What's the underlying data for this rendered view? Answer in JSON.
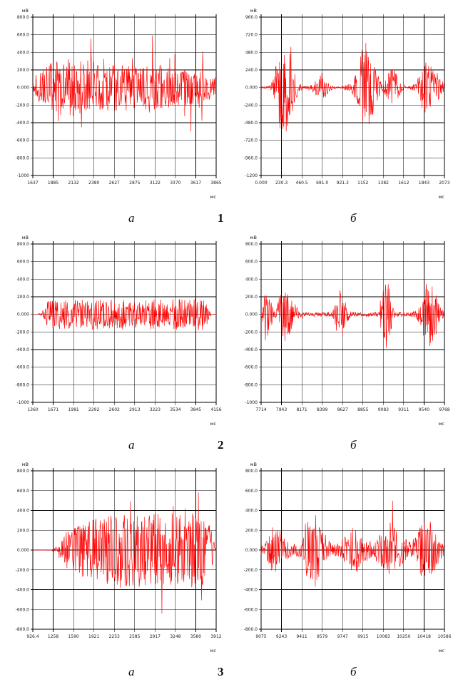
{
  "page": {
    "background": "#ffffff"
  },
  "colors": {
    "signal": "#ff0000",
    "grid": "#000000",
    "text": "#1a1a1a"
  },
  "rows": [
    {
      "number": "1",
      "left_letter": "а",
      "right_letter": "б"
    },
    {
      "number": "2",
      "left_letter": "а",
      "right_letter": "б"
    },
    {
      "number": "3",
      "left_letter": "а",
      "right_letter": "б"
    }
  ],
  "chart_data": [
    {
      "id": "1a",
      "row": 1,
      "panel": "а",
      "type": "line",
      "ylabel": "мВ",
      "xlabel": "мс",
      "y_ticks": [
        "800.0",
        "600.0",
        "400.0",
        "200.0",
        "0.000",
        "-200.0",
        "-400.0",
        "-600.0",
        "-800.0",
        "-1000"
      ],
      "x_ticks": [
        "1637",
        "1885",
        "2132",
        "2380",
        "2627",
        "2875",
        "3122",
        "3370",
        "3617",
        "3865"
      ],
      "description": "continuous dense noise signal centered at 0 mV with spikes up to about ±800 mV",
      "envelope_mv": [
        60,
        150,
        220,
        260,
        280,
        300,
        320,
        340,
        330,
        340,
        330,
        320,
        310,
        300,
        290,
        280,
        280,
        270,
        270,
        260,
        260,
        260,
        250,
        250,
        250,
        260,
        270,
        260,
        250,
        240,
        230,
        230,
        220,
        210,
        200,
        190,
        180,
        170,
        150,
        120
      ],
      "spike_gain": 2.6,
      "spike_prob": 0.06,
      "seed": 101
    },
    {
      "id": "1b",
      "row": 1,
      "panel": "б",
      "type": "line",
      "ylabel": "мВ",
      "xlabel": "мс",
      "y_ticks": [
        "960.0",
        "720.0",
        "480.0",
        "240.0",
        "0.000",
        "-240.0",
        "-480.0",
        "-720.0",
        "-960.0",
        "-1200"
      ],
      "x_ticks": [
        "0.000",
        "230.3",
        "460.5",
        "691.0",
        "921.3",
        "1152",
        "1382",
        "1612",
        "1843",
        "2073"
      ],
      "description": "burst-type signal: large bursts near 250, 1150 and 1900 ms, smaller bursts between, flat baseline elsewhere",
      "envelope_mv": [
        10,
        15,
        40,
        250,
        600,
        650,
        500,
        250,
        60,
        15,
        30,
        80,
        130,
        220,
        110,
        35,
        10,
        10,
        45,
        60,
        160,
        500,
        650,
        550,
        350,
        150,
        55,
        210,
        310,
        160,
        45,
        12,
        30,
        65,
        260,
        360,
        310,
        260,
        160,
        55
      ],
      "spike_gain": 1.5,
      "spike_prob": 0.07,
      "seed": 102
    },
    {
      "id": "2a",
      "row": 2,
      "panel": "а",
      "type": "line",
      "ylabel": "мВ",
      "xlabel": "мс",
      "y_ticks": [
        "800.0",
        "600.0",
        "400.0",
        "200.0",
        "0.000",
        "-200.0",
        "-400.0",
        "-600.0",
        "-800.0",
        "-1000"
      ],
      "x_ticks": [
        "1360",
        "1671",
        "1981",
        "2292",
        "2602",
        "2913",
        "3223",
        "3534",
        "3845",
        "4156"
      ],
      "description": "uniform continuous noise band of roughly ±200 mV spanning almost the full sweep",
      "envelope_mv": [
        2,
        2,
        30,
        140,
        160,
        170,
        165,
        170,
        175,
        170,
        165,
        170,
        168,
        172,
        168,
        165,
        170,
        172,
        168,
        172,
        170,
        172,
        168,
        165,
        170,
        172,
        170,
        172,
        170,
        175,
        178,
        172,
        168,
        172,
        178,
        185,
        175,
        120,
        3,
        2
      ],
      "spike_gain": 1.4,
      "spike_prob": 0.03,
      "seed": 201
    },
    {
      "id": "2b",
      "row": 2,
      "panel": "б",
      "type": "line",
      "ylabel": "мВ",
      "xlabel": "мс",
      "y_ticks": [
        "800.0",
        "600.0",
        "400.0",
        "200.0",
        "0.000",
        "-200.0",
        "-400.0",
        "-600.0",
        "-800.0",
        "-1000"
      ],
      "x_ticks": [
        "7714",
        "7943",
        "8171",
        "8399",
        "8627",
        "8855",
        "9083",
        "9311",
        "9540",
        "9768"
      ],
      "description": "narrow spiky bursts near 7780, 8100, 8620, 9100 and 9600 ms on a near-zero baseline",
      "envelope_mv": [
        20,
        330,
        150,
        40,
        220,
        260,
        230,
        140,
        50,
        25,
        20,
        20,
        25,
        30,
        25,
        20,
        160,
        300,
        130,
        40,
        25,
        20,
        20,
        25,
        20,
        30,
        320,
        430,
        90,
        30,
        25,
        20,
        30,
        50,
        160,
        340,
        380,
        280,
        90,
        30
      ],
      "spike_gain": 1.7,
      "spike_prob": 0.05,
      "seed": 202
    },
    {
      "id": "3a",
      "row": 3,
      "panel": "а",
      "type": "line",
      "ylabel": "мВ",
      "xlabel": "мс",
      "y_ticks": [
        "800.0",
        "600.0",
        "400.0",
        "200.0",
        "0.000",
        "-200.0",
        "-400.0",
        "-600.0",
        "-800.0"
      ],
      "x_ticks": [
        "926.4",
        "1258",
        "1590",
        "1921",
        "2253",
        "2585",
        "2917",
        "3248",
        "3580",
        "3912"
      ],
      "description": "flat baseline then growing continuous noise with spikes to about ±800 mV lasting to the end of sweep",
      "envelope_mv": [
        2,
        2,
        2,
        2,
        3,
        40,
        120,
        180,
        200,
        230,
        260,
        290,
        300,
        320,
        330,
        340,
        360,
        370,
        360,
        370,
        380,
        370,
        380,
        370,
        360,
        370,
        380,
        370,
        360,
        370,
        380,
        370,
        360,
        370,
        380,
        370,
        360,
        330,
        200,
        5
      ],
      "spike_gain": 2.2,
      "spike_prob": 0.05,
      "seed": 301
    },
    {
      "id": "3b",
      "row": 3,
      "panel": "б",
      "type": "line",
      "ylabel": "мВ",
      "xlabel": "мс",
      "y_ticks": [
        "800.0",
        "600.0",
        "400.0",
        "200.0",
        "0.000",
        "-200.0",
        "-400.0",
        "-600.0",
        "-800.0"
      ],
      "x_ticks": [
        "9075",
        "9243",
        "9411",
        "9579",
        "9747",
        "9915",
        "10083",
        "10250",
        "10418",
        "10586"
      ],
      "description": "low continuous noise with repeated bursts, tall spikes near 9620 and 10500 ms reaching about ±800 mV",
      "envelope_mv": [
        40,
        90,
        220,
        260,
        200,
        120,
        80,
        60,
        80,
        130,
        320,
        430,
        330,
        200,
        100,
        80,
        60,
        90,
        160,
        210,
        250,
        210,
        150,
        100,
        90,
        160,
        250,
        300,
        250,
        200,
        150,
        100,
        90,
        160,
        260,
        310,
        340,
        250,
        120,
        60
      ],
      "spike_gain": 2.3,
      "spike_prob": 0.035,
      "seed": 302
    }
  ]
}
